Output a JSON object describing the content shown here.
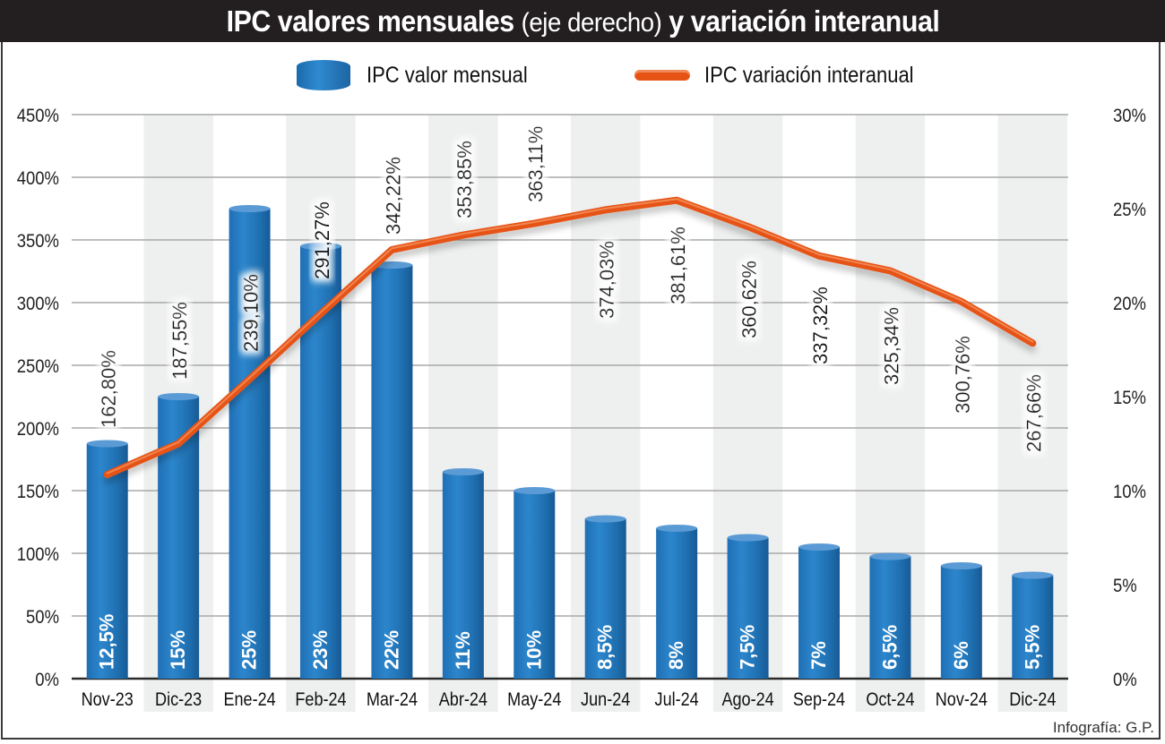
{
  "title": {
    "part1": "IPC valores mensuales",
    "part2": "(eje derecho)",
    "part3": "y variación interanual"
  },
  "legend": {
    "bar_label": "IPC valor mensual",
    "line_label": "IPC variación interanual"
  },
  "credit": "Infografía: G.P.",
  "colors": {
    "bar": "#2178c0",
    "line": "#e65314",
    "band": "#eeefef",
    "title_bg": "#231f20"
  },
  "chart_data": {
    "type": "bar+line",
    "title": "IPC valores mensuales (eje derecho) y variación interanual",
    "categories": [
      "Nov-23",
      "Dic-23",
      "Ene-24",
      "Feb-24",
      "Mar-24",
      "Abr-24",
      "May-24",
      "Jun-24",
      "Jul-24",
      "Ago-24",
      "Sep-24",
      "Oct-24",
      "Nov-24",
      "Dic-24"
    ],
    "left_axis": {
      "ticks": [
        "0%",
        "50%",
        "100%",
        "150%",
        "200%",
        "250%",
        "300%",
        "350%",
        "400%",
        "450%"
      ],
      "range": [
        0,
        450
      ]
    },
    "right_axis": {
      "ticks": [
        "0%",
        "5%",
        "10%",
        "15%",
        "20%",
        "25%",
        "30%"
      ],
      "range": [
        0,
        30
      ]
    },
    "grid": true,
    "legend_position": "top-center",
    "series": [
      {
        "name": "IPC valor mensual",
        "kind": "bar",
        "labels": [
          "12,5%",
          "15%",
          "25%",
          "23%",
          "22%",
          "11%",
          "10%",
          "8,5%",
          "8%",
          "7,5%",
          "7%",
          "6,5%",
          "6%",
          "5,5%"
        ],
        "values": [
          12.5,
          15,
          25,
          23,
          22,
          11,
          10,
          8.5,
          8,
          7.5,
          7,
          6.5,
          6,
          5.5
        ]
      },
      {
        "name": "IPC variación interanual",
        "kind": "line",
        "labels": [
          "162,80%",
          "187,55%",
          "239,10%",
          "291,27%",
          "342,22%",
          "353,85%",
          "363,11%",
          "374,03%",
          "381,61%",
          "360,62%",
          "337,32%",
          "325,34%",
          "300,76%",
          "267,66%"
        ],
        "values": [
          162.8,
          187.55,
          239.1,
          291.27,
          342.22,
          353.85,
          363.11,
          374.03,
          381.61,
          360.62,
          337.32,
          325.34,
          300.76,
          267.66
        ]
      }
    ]
  }
}
